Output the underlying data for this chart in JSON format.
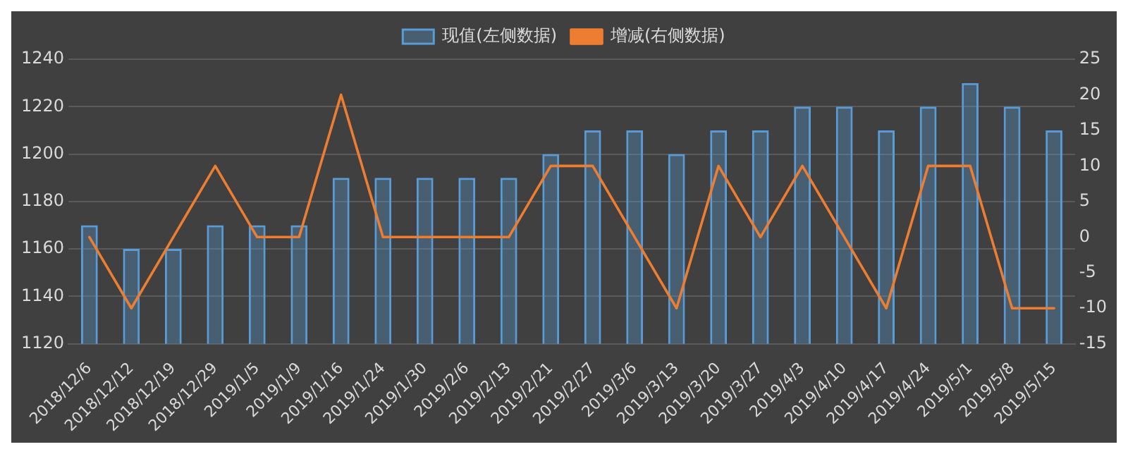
{
  "chart_data": {
    "type": "bar",
    "categories": [
      "2018/12/6",
      "2018/12/12",
      "2018/12/19",
      "2018/12/29",
      "2019/1/5",
      "2019/1/9",
      "2019/1/16",
      "2019/1/24",
      "2019/1/30",
      "2019/2/6",
      "2019/2/13",
      "2019/2/21",
      "2019/2/27",
      "2019/3/6",
      "2019/3/13",
      "2019/3/20",
      "2019/3/27",
      "2019/4/3",
      "2019/4/10",
      "2019/4/17",
      "2019/4/24",
      "2019/5/1",
      "2019/5/8",
      "2019/5/15"
    ],
    "series": [
      {
        "name": "现值(左侧数据)",
        "color": "#5b9bd5",
        "values": [
          1170,
          1160,
          1160,
          1170,
          1170,
          1170,
          1190,
          1190,
          1190,
          1190,
          1190,
          1200,
          1210,
          1210,
          1200,
          1210,
          1210,
          1220,
          1220,
          1210,
          1220,
          1230,
          1220,
          1210
        ]
      },
      {
        "name": "增减(右侧数据)",
        "type": "line",
        "axis": "y2",
        "color": "#ed7d31",
        "values": [
          0,
          -10,
          0,
          10,
          0,
          0,
          20,
          0,
          0,
          0,
          0,
          10,
          10,
          0,
          -10,
          10,
          0,
          10,
          0,
          -10,
          10,
          10,
          -10,
          -10
        ]
      }
    ],
    "ylim": [
      1120,
      1240
    ],
    "yticks": [
      1120,
      1140,
      1160,
      1180,
      1200,
      1220,
      1240
    ],
    "y2lim": [
      -15,
      25
    ],
    "y2ticks": [
      -15,
      -10,
      -5,
      0,
      5,
      10,
      15,
      20,
      25
    ],
    "grid": "y",
    "legend": "top",
    "marker": "none"
  }
}
